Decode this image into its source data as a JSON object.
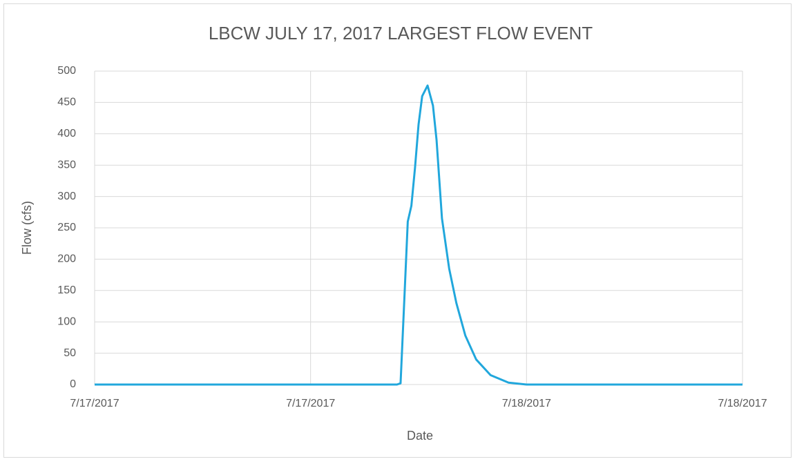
{
  "chart_data": {
    "type": "line",
    "title": "LBCW JULY 17, 2017 LARGEST FLOW EVENT",
    "x_label": "Date",
    "y_label": "Flow (cfs)",
    "x": [
      0,
      16.8,
      17.0,
      17.2,
      17.4,
      17.6,
      17.8,
      18.0,
      18.2,
      18.5,
      18.8,
      19.0,
      19.3,
      19.7,
      20.1,
      20.6,
      21.2,
      22.0,
      23.0,
      24.0,
      36
    ],
    "series": [
      {
        "name": "Flow",
        "color": "#21a7dc",
        "values": [
          0,
          0,
          2,
          130,
          260,
          285,
          345,
          415,
          460,
          477,
          445,
          390,
          265,
          185,
          130,
          78,
          40,
          15,
          3,
          0,
          0
        ]
      }
    ],
    "xlim": [
      0,
      36
    ],
    "xticks": [
      {
        "value": 0,
        "label": "7/17/2017"
      },
      {
        "value": 12,
        "label": "7/17/2017"
      },
      {
        "value": 24,
        "label": "7/18/2017"
      },
      {
        "value": 36,
        "label": "7/18/2017"
      }
    ],
    "ylim": [
      0,
      500
    ],
    "yticks": [
      0,
      50,
      100,
      150,
      200,
      250,
      300,
      350,
      400,
      450,
      500
    ],
    "grid": true
  }
}
